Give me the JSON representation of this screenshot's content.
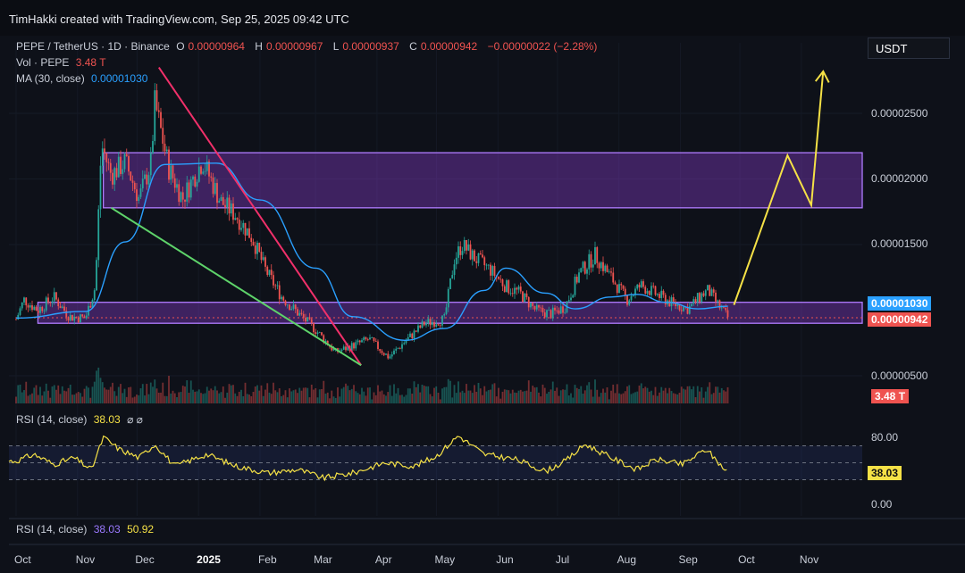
{
  "header": {
    "credit": "TimHakki created with TradingView.com, Sep 25, 2025 09:42 UTC"
  },
  "legend": {
    "symbol": "PEPE / TetherUS · 1D · Binance",
    "open_label": "O",
    "open": "0.00000964",
    "high_label": "H",
    "high": "0.00000967",
    "low_label": "L",
    "low": "0.00000937",
    "close_label": "C",
    "close": "0.00000942",
    "change": "−0.00000022 (−2.28%)",
    "vol_label": "Vol · PEPE",
    "vol": "3.48 T",
    "ma_label": "MA (30, close)",
    "ma": "0.00001030"
  },
  "currency_button": "USDT",
  "price_tags": {
    "ma": "0.00001030",
    "close": "0.00000942",
    "volume": "3.48 T"
  },
  "rsi_pane1": {
    "label": "RSI (14, close)",
    "value": "38.03",
    "icons": "⌀ ⌀",
    "tag": "38.03",
    "ticks": [
      "80.00",
      "0.00"
    ]
  },
  "rsi_pane2": {
    "label": "RSI (14, close)",
    "value1": "38.03",
    "value2": "50.92"
  },
  "colors": {
    "up": "#26a69a",
    "down": "#ef5350",
    "ma": "#2aa0ff",
    "zone": "#8e3fd6",
    "rsi": "#f5e146",
    "projection": "#f5e146",
    "wedge_top": "#f0306a",
    "wedge_bottom": "#5ed36a"
  },
  "chart_data": {
    "type": "candlestick",
    "title": "PEPE / TetherUS · 1D · Binance",
    "x_ticks": [
      "Oct",
      "Nov",
      "Dec",
      "2025",
      "Feb",
      "Mar",
      "Apr",
      "May",
      "Jun",
      "Jul",
      "Aug",
      "Sep",
      "Oct",
      "Nov"
    ],
    "y_ticks": [
      "0.00002500",
      "0.00002000",
      "0.00001500",
      "0.00000500"
    ],
    "y_tick_values": [
      2.5e-05,
      2e-05,
      1.5e-05,
      5e-06
    ],
    "price_path": [
      [
        "2024-10-01",
        9.3e-06
      ],
      [
        "2024-10-05",
        1.08e-05
      ],
      [
        "2024-10-12",
        1e-05
      ],
      [
        "2024-10-20",
        1.1e-05
      ],
      [
        "2024-10-28",
        9.5e-06
      ],
      [
        "2024-11-05",
        9.4e-06
      ],
      [
        "2024-11-10",
        1.18e-05
      ],
      [
        "2024-11-13",
        2.26e-05
      ],
      [
        "2024-11-18",
        2.03e-05
      ],
      [
        "2024-11-25",
        2.13e-05
      ],
      [
        "2024-12-02",
        1.85e-05
      ],
      [
        "2024-12-08",
        2.12e-05
      ],
      [
        "2024-12-10",
        2.58e-05
      ],
      [
        "2024-12-17",
        2.08e-05
      ],
      [
        "2024-12-24",
        1.85e-05
      ],
      [
        "2025-01-03",
        2.14e-05
      ],
      [
        "2025-01-12",
        1.83e-05
      ],
      [
        "2025-01-20",
        1.72e-05
      ],
      [
        "2025-01-28",
        1.55e-05
      ],
      [
        "2025-02-04",
        1.3e-05
      ],
      [
        "2025-02-12",
        1.1e-05
      ],
      [
        "2025-02-20",
        9.8e-06
      ],
      [
        "2025-03-01",
        8.5e-06
      ],
      [
        "2025-03-11",
        6.8e-06
      ],
      [
        "2025-03-20",
        7.3e-06
      ],
      [
        "2025-03-28",
        7.8e-06
      ],
      [
        "2025-04-07",
        6.4e-06
      ],
      [
        "2025-04-15",
        7.6e-06
      ],
      [
        "2025-04-25",
        9e-06
      ],
      [
        "2025-05-05",
        9.3e-06
      ],
      [
        "2025-05-10",
        1.39e-05
      ],
      [
        "2025-05-14",
        1.5e-05
      ],
      [
        "2025-05-20",
        1.4e-05
      ],
      [
        "2025-05-28",
        1.31e-05
      ],
      [
        "2025-06-05",
        1.18e-05
      ],
      [
        "2025-06-12",
        1.13e-05
      ],
      [
        "2025-06-20",
        1e-05
      ],
      [
        "2025-06-28",
        9.7e-06
      ],
      [
        "2025-07-05",
        1.03e-05
      ],
      [
        "2025-07-12",
        1.28e-05
      ],
      [
        "2025-07-20",
        1.42e-05
      ],
      [
        "2025-07-28",
        1.25e-05
      ],
      [
        "2025-08-05",
        1.08e-05
      ],
      [
        "2025-08-12",
        1.19e-05
      ],
      [
        "2025-08-20",
        1.12e-05
      ],
      [
        "2025-08-28",
        1.05e-05
      ],
      [
        "2025-09-05",
        1.01e-05
      ],
      [
        "2025-09-12",
        1.12e-05
      ],
      [
        "2025-09-15",
        1.15e-05
      ],
      [
        "2025-09-20",
        1.04e-05
      ],
      [
        "2025-09-25",
        9.42e-06
      ]
    ],
    "ma_path": [
      [
        "2024-10-01",
        9.4e-06
      ],
      [
        "2024-11-05",
        9.9e-06
      ],
      [
        "2024-11-25",
        1.52e-05
      ],
      [
        "2024-12-15",
        2.11e-05
      ],
      [
        "2025-01-10",
        2.12e-05
      ],
      [
        "2025-02-01",
        1.84e-05
      ],
      [
        "2025-03-01",
        1.32e-05
      ],
      [
        "2025-03-20",
        9.5e-06
      ],
      [
        "2025-04-15",
        7.7e-06
      ],
      [
        "2025-05-05",
        8.6e-06
      ],
      [
        "2025-05-25",
        1.15e-05
      ],
      [
        "2025-06-05",
        1.32e-05
      ],
      [
        "2025-06-25",
        1.13e-05
      ],
      [
        "2025-07-10",
        1.01e-05
      ],
      [
        "2025-07-28",
        1.1e-05
      ],
      [
        "2025-08-10",
        1.12e-05
      ],
      [
        "2025-08-25",
        1.06e-05
      ],
      [
        "2025-09-10",
        1.01e-05
      ],
      [
        "2025-09-25",
        1.03e-05
      ]
    ],
    "zones": [
      {
        "name": "upper",
        "from": 1.78e-05,
        "to": 2.2e-05
      },
      {
        "name": "lower",
        "from": 9e-06,
        "to": 1.06e-05
      }
    ],
    "trendlines": [
      {
        "name": "wedge_top",
        "from": [
          "2024-12-12",
          2.85e-05
        ],
        "to": [
          "2025-03-24",
          5.8e-06
        ]
      },
      {
        "name": "wedge_bottom",
        "from": [
          "2024-11-18",
          1.78e-05
        ],
        "to": [
          "2025-03-24",
          5.8e-06
        ]
      }
    ],
    "projection": [
      [
        "2025-09-28",
        1.04e-05
      ],
      [
        "2025-10-25",
        2.18e-05
      ],
      [
        "2025-11-06",
        1.8e-05
      ],
      [
        "2025-11-12",
        2.82e-05
      ]
    ],
    "rsi_series": [
      [
        "2024-10-01",
        52
      ],
      [
        "2024-10-10",
        60
      ],
      [
        "2024-10-20",
        48
      ],
      [
        "2024-10-30",
        56
      ],
      [
        "2024-11-08",
        42
      ],
      [
        "2024-11-14",
        80
      ],
      [
        "2024-11-22",
        66
      ],
      [
        "2024-12-02",
        56
      ],
      [
        "2024-12-10",
        72
      ],
      [
        "2024-12-20",
        46
      ],
      [
        "2025-01-05",
        60
      ],
      [
        "2025-01-20",
        46
      ],
      [
        "2025-02-05",
        38
      ],
      [
        "2025-02-20",
        42
      ],
      [
        "2025-03-05",
        32
      ],
      [
        "2025-03-20",
        38
      ],
      [
        "2025-04-05",
        50
      ],
      [
        "2025-04-20",
        46
      ],
      [
        "2025-05-01",
        58
      ],
      [
        "2025-05-12",
        82
      ],
      [
        "2025-05-25",
        60
      ],
      [
        "2025-06-10",
        54
      ],
      [
        "2025-06-25",
        40
      ],
      [
        "2025-07-05",
        52
      ],
      [
        "2025-07-15",
        72
      ],
      [
        "2025-07-28",
        56
      ],
      [
        "2025-08-10",
        42
      ],
      [
        "2025-08-20",
        54
      ],
      [
        "2025-09-02",
        48
      ],
      [
        "2025-09-14",
        66
      ],
      [
        "2025-09-25",
        38
      ]
    ],
    "rsi_levels": [
      70,
      50,
      30
    ],
    "rsi_ylim": [
      0,
      100
    ],
    "grid": true
  }
}
